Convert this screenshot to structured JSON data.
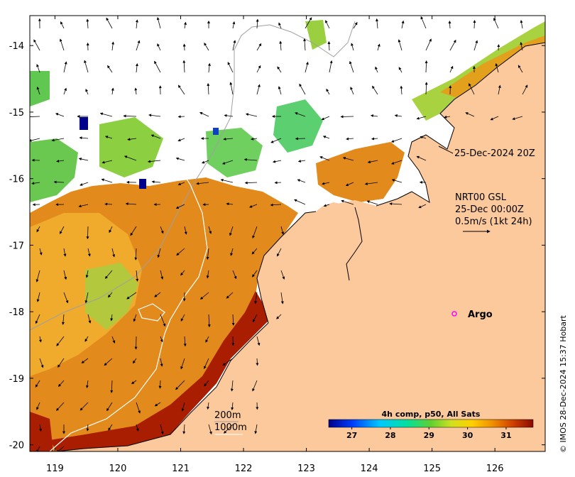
{
  "map": {
    "lon_ticks": [
      "119",
      "120",
      "121",
      "122",
      "123",
      "124",
      "125",
      "126"
    ],
    "lat_ticks": [
      "-14",
      "-15",
      "-16",
      "-17",
      "-18",
      "-19",
      "-20"
    ],
    "lon_range": [
      118.6,
      126.8
    ],
    "lat_range": [
      -20.1,
      -13.55
    ]
  },
  "labels": {
    "sst_time": "25-Dec-2024 20Z",
    "current_title": "NRT00 GSL",
    "current_time": "25-Dec 00:00Z",
    "current_scale": "0.5m/s (1kt 24h)",
    "argo": "Argo",
    "isobath_200": "200m",
    "isobath_1000": "1000m"
  },
  "colorbar": {
    "title": "4h comp, p50, All Sats",
    "ticks": [
      "27",
      "28",
      "29",
      "30",
      "31"
    ],
    "tick_values": [
      27,
      28,
      29,
      30,
      31
    ],
    "range": [
      26.4,
      31.7
    ]
  },
  "credit": "© IMOS 28-Dec-2024 15:37 Hobart",
  "colors": {
    "land": "#fbc99c",
    "hot": "#8b0a00",
    "warm": "#e07f10",
    "mild": "#f0ae2b",
    "cool": "#78d040",
    "cold": "#00008c",
    "argo_marker": "#ff00ff"
  }
}
